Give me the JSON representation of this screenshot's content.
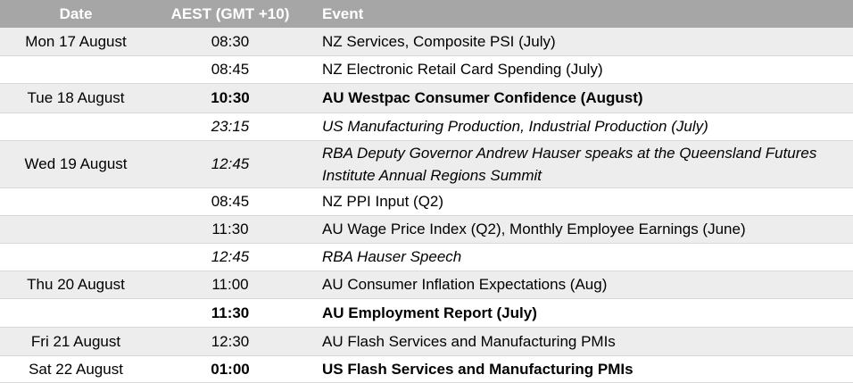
{
  "table": {
    "header": [
      "Date",
      "AEST (GMT +10)",
      "Event"
    ],
    "rows": [
      {
        "date": "Mon 17 August",
        "time": "08:30",
        "event": "NZ Services, Composite PSI (July)"
      },
      {
        "time": "08:45",
        "event": "NZ Electronic Retail Card Spending (July)"
      },
      {
        "date": "Tue 18 August",
        "time": "10:30",
        "event": "AU Westpac Consumer Confidence (August)"
      },
      {
        "time": "23:15",
        "event": "US Manufacturing Production, Industrial Production (July)"
      },
      {
        "date": "Wed 19 August",
        "time": "12:45",
        "event": "RBA Deputy Governor Andrew Hauser speaks at the Queensland Futures Institute Annual Regions Summit"
      },
      {
        "time": "08:45",
        "event": "NZ PPI Input (Q2)"
      },
      {
        "time": "11:30",
        "event": "AU Wage Price Index (Q2), Monthly Employee Earnings (June)"
      },
      {
        "time": "12:45",
        "event": "RBA Hauser Speech"
      },
      {
        "date": "Thu 20 August",
        "time": "11:00",
        "event": "AU Consumer Inflation Expectations (Aug)"
      },
      {
        "time": "11:30",
        "event": "AU Employment Report (July)"
      },
      {
        "date": "Fri 21 August",
        "time": "12:30",
        "event": "AU Flash Services and Manufacturing PMIs"
      },
      {
        "date": "Sat 22 August",
        "time": "01:00",
        "event": "US Flash Services and Manufacturing PMIs"
      }
    ]
  }
}
